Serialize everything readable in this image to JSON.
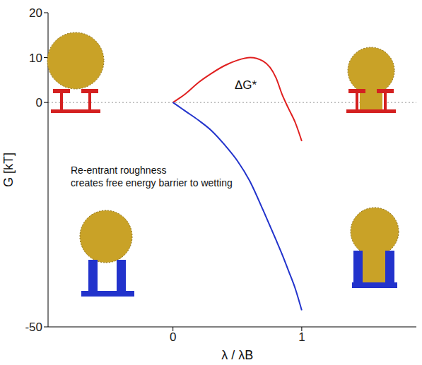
{
  "chart_data": {
    "type": "line",
    "x_label": "λ / λB",
    "y_label": "G [kT]",
    "x": [
      0,
      0.1,
      0.2,
      0.3,
      0.4,
      0.5,
      0.6,
      0.7,
      0.8,
      0.85,
      0.9,
      0.95,
      1.0
    ],
    "series": [
      {
        "color": "#e02020",
        "marker": "none",
        "line_style": "solid",
        "values": [
          0,
          2,
          4.5,
          6.5,
          8.2,
          9.4,
          10,
          9.2,
          5.5,
          1.6,
          -1.5,
          -4.5,
          -8.6
        ]
      },
      {
        "color": "#2233cc",
        "marker": "none",
        "line_style": "solid",
        "values": [
          0,
          -2,
          -4,
          -6.3,
          -9.4,
          -13,
          -17.7,
          -24,
          -30.6,
          -34,
          -37.7,
          -41.5,
          -46.3
        ]
      }
    ],
    "xlim": [
      -0.97,
      1.89
    ],
    "xticks": [
      0,
      1
    ],
    "ylim": [
      -50,
      20
    ],
    "yticks": [
      -50,
      0,
      10,
      20
    ],
    "reference_lines": [
      0
    ],
    "annotations": [
      {
        "lines": [
          "ΔG*"
        ]
      },
      {
        "lines": [
          "Re-entrant roughness",
          "creates free energy barrier to wetting"
        ]
      }
    ],
    "grid": false
  }
}
